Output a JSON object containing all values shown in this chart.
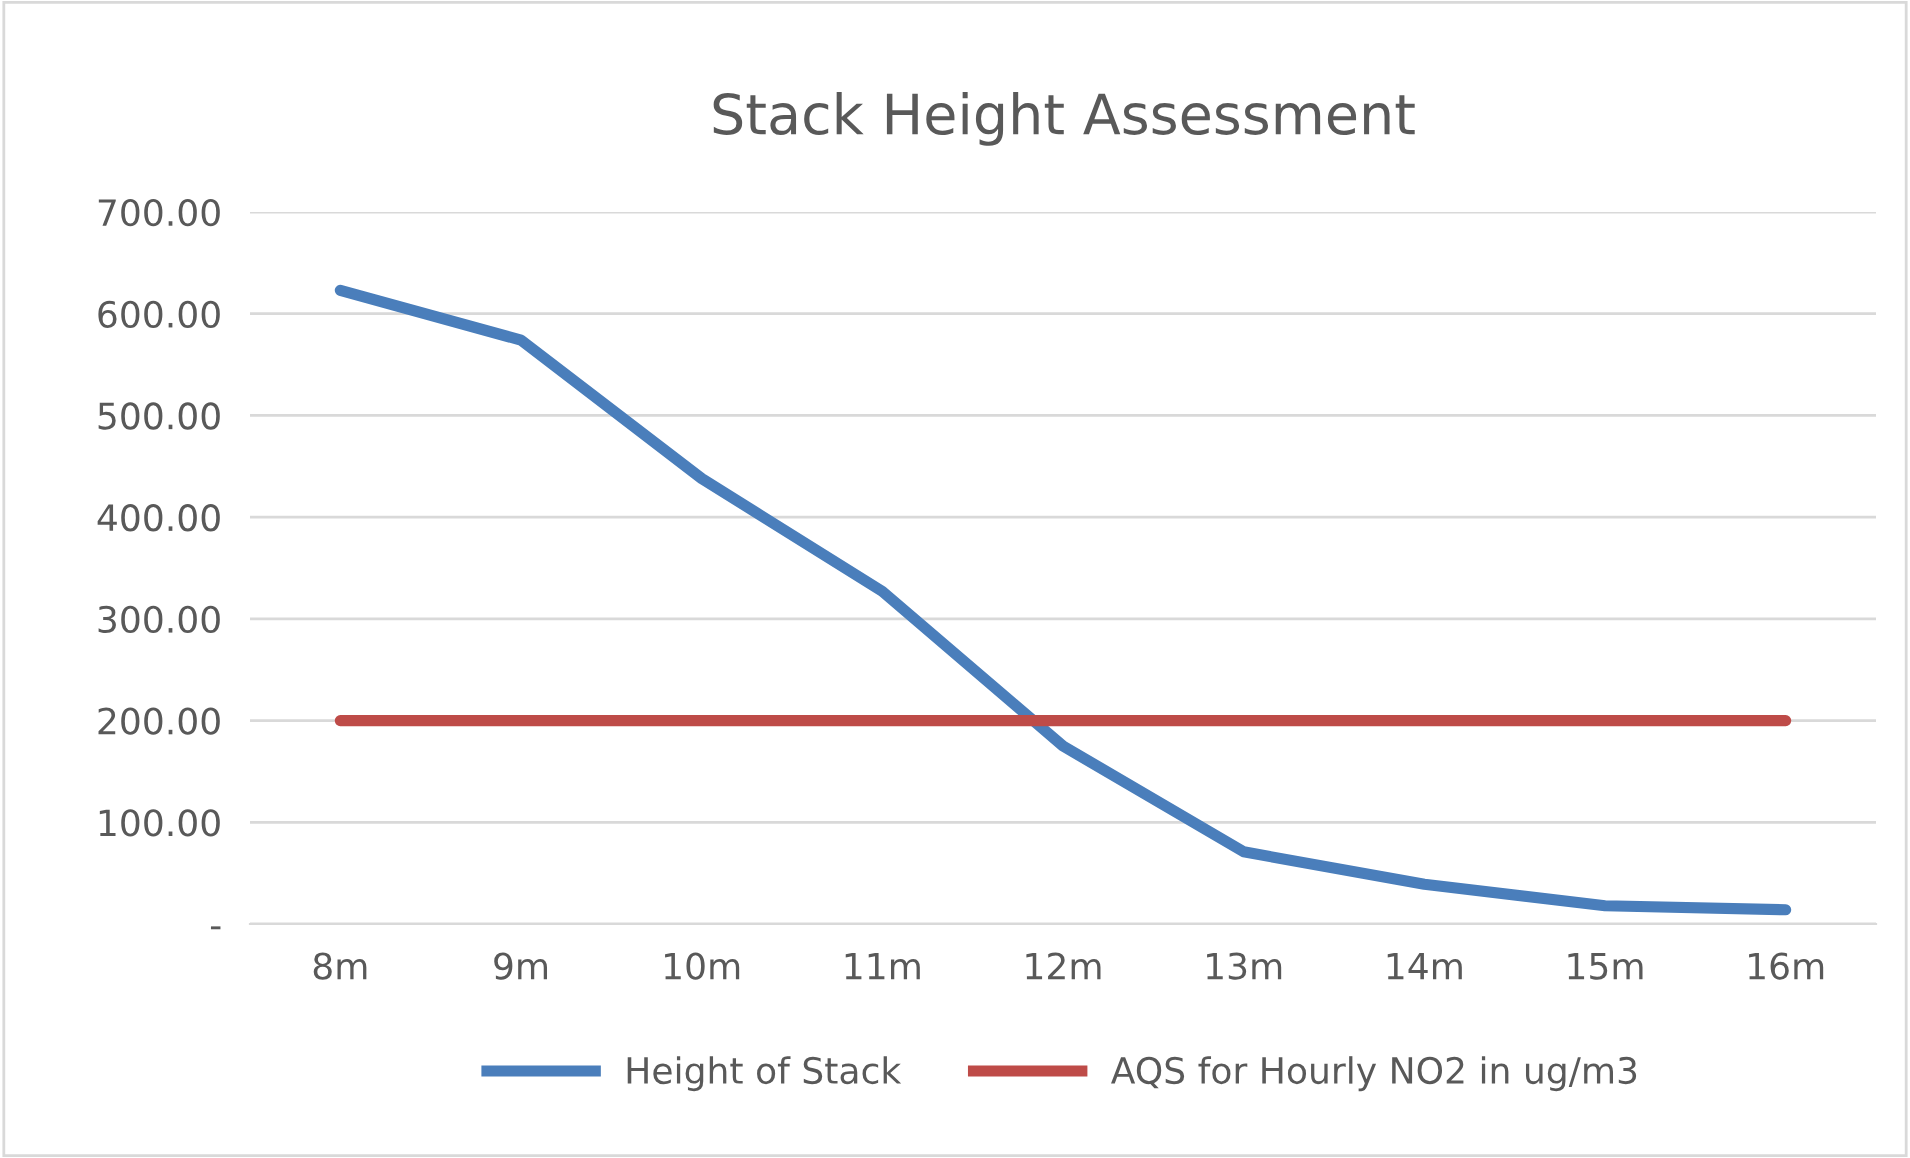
{
  "chart_data": {
    "type": "line",
    "title": "Stack Height Assessment",
    "categories": [
      "8m",
      "9m",
      "10m",
      "11m",
      "12m",
      "13m",
      "14m",
      "15m",
      "16m"
    ],
    "series": [
      {
        "name": "Height of Stack",
        "color": "#4a7ebb",
        "values": [
          623,
          574,
          438,
          327,
          175,
          71,
          39,
          18,
          14
        ]
      },
      {
        "name": "AQS for Hourly NO2 in ug/m3",
        "color": "#be4b48",
        "values": [
          200,
          200,
          200,
          200,
          200,
          200,
          200,
          200,
          200
        ]
      }
    ],
    "ylim": [
      0,
      700
    ],
    "yticks": [
      {
        "value": 0,
        "label": "-"
      },
      {
        "value": 100,
        "label": "100.00"
      },
      {
        "value": 200,
        "label": "200.00"
      },
      {
        "value": 300,
        "label": "300.00"
      },
      {
        "value": 400,
        "label": "400.00"
      },
      {
        "value": 500,
        "label": "500.00"
      },
      {
        "value": 600,
        "label": "600.00"
      },
      {
        "value": 700,
        "label": "700.00"
      }
    ],
    "grid": "y",
    "legend": "bottom",
    "marker": "none",
    "line_style": "solid"
  }
}
